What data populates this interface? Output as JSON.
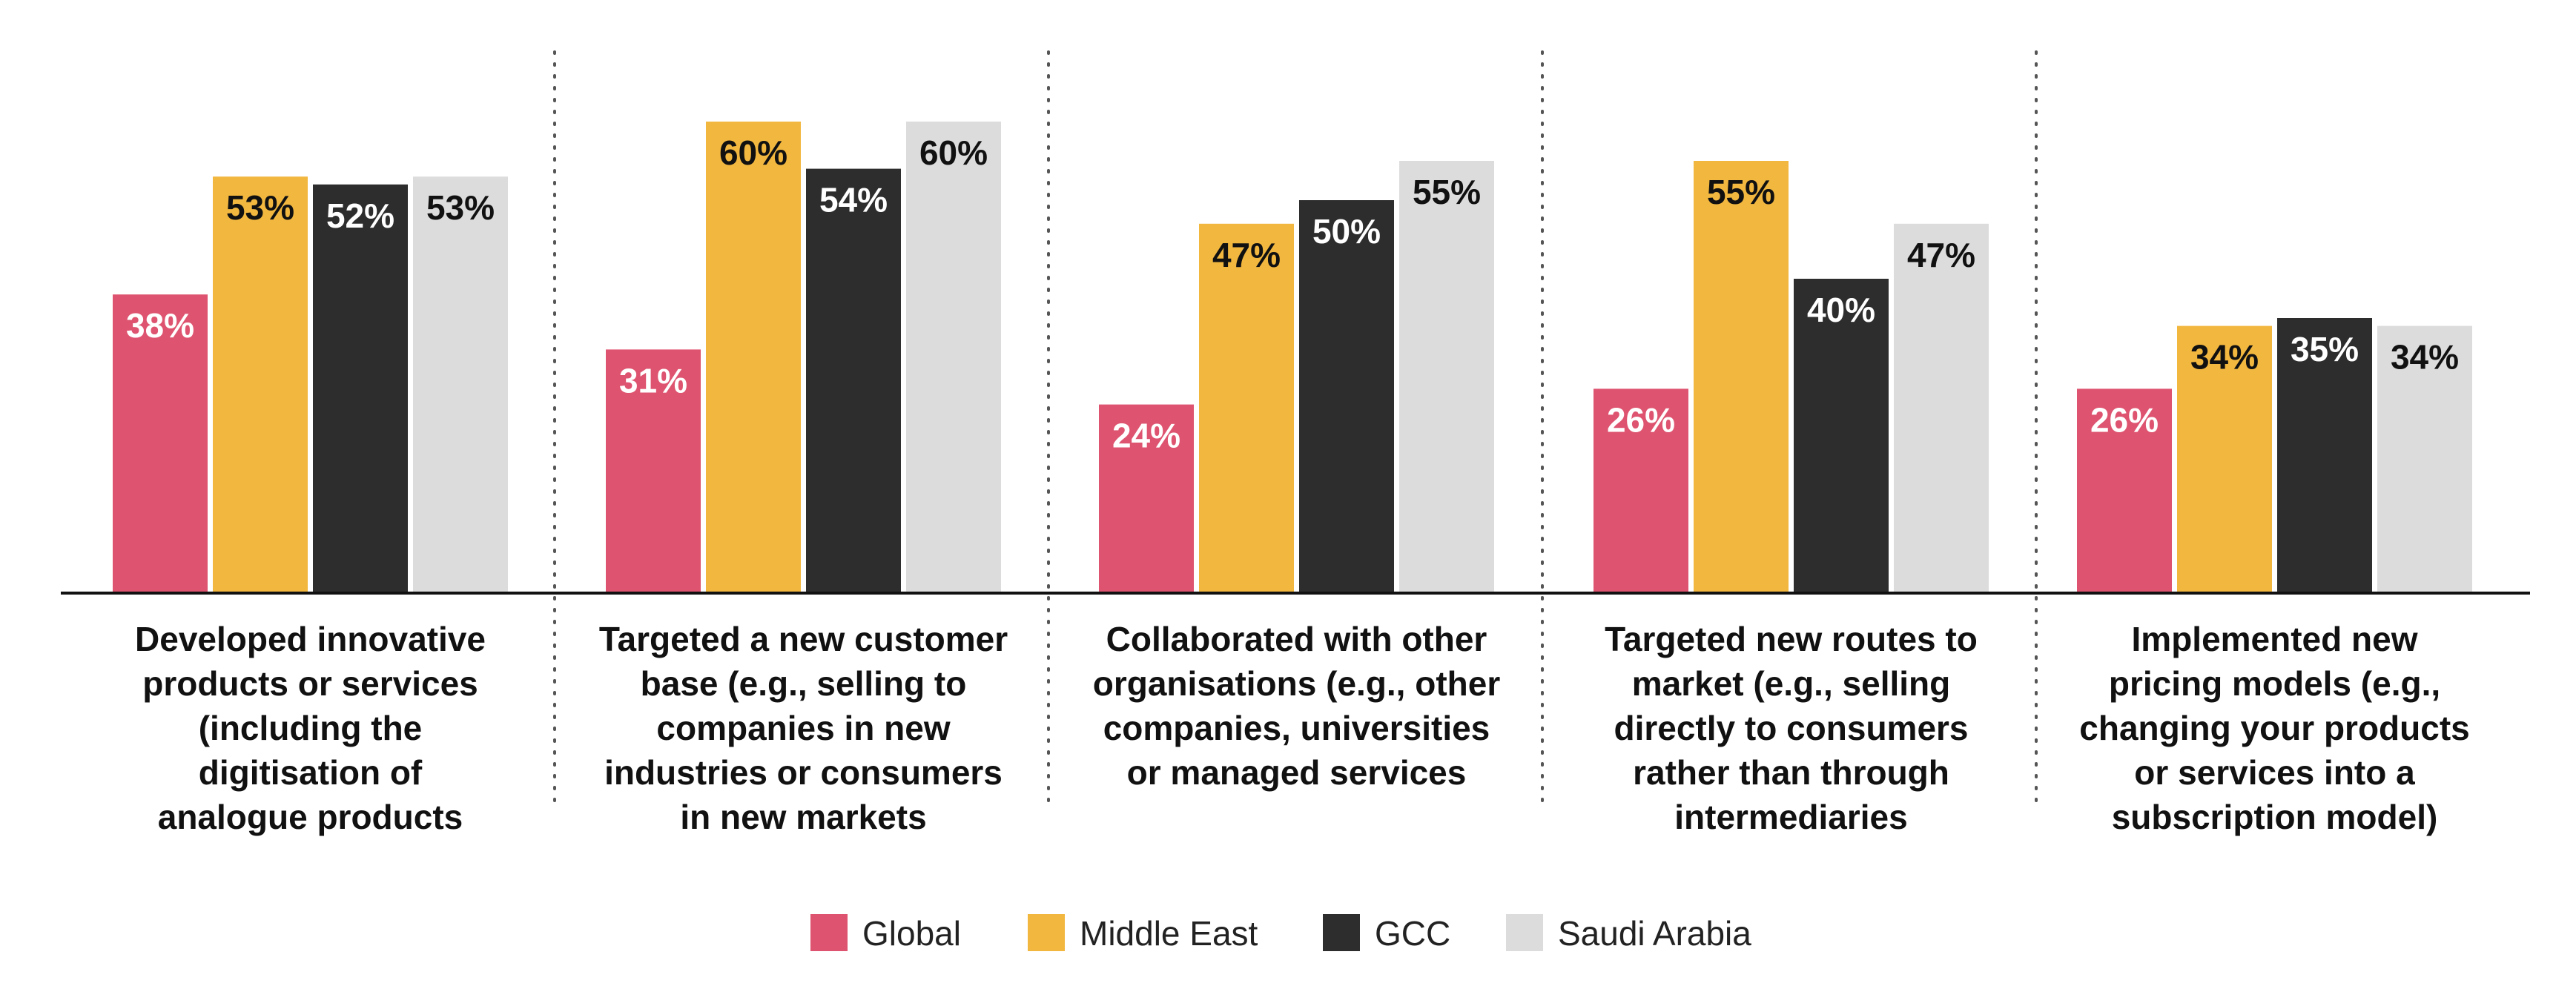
{
  "chart_data": {
    "type": "bar",
    "categories": [
      "Developed innovative products or services (including the digitisation of analogue products",
      "Targeted a new customer base (e.g., selling to companies in new industries or consumers in new markets",
      "Collaborated with other organisations (e.g., other companies, universities or managed services",
      "Targeted new routes to market (e.g., selling directly to consumers rather than through intermediaries",
      "Implemented new pricing models (e.g., changing your products or services into a subscription model)"
    ],
    "category_lines": [
      [
        "Developed innovative",
        "products or services",
        "(including the",
        "digitisation of",
        "analogue products"
      ],
      [
        "Targeted a new customer",
        "base (e.g., selling to",
        "companies in new",
        "industries or consumers",
        "in new markets"
      ],
      [
        "Collaborated with other",
        "organisations (e.g., other",
        "companies, universities",
        "or managed services"
      ],
      [
        "Targeted new routes to",
        "market (e.g., selling",
        "directly to consumers",
        "rather than through",
        "intermediaries"
      ],
      [
        "Implemented new",
        "pricing models (e.g.,",
        "changing your products",
        "or services into a",
        "subscription model)"
      ]
    ],
    "series": [
      {
        "name": "Global",
        "color": "#de5470",
        "label_color": "#ffffff",
        "values": [
          38,
          31,
          24,
          26,
          26
        ]
      },
      {
        "name": "Middle East",
        "color": "#f2b73f",
        "label_color": "#111111",
        "values": [
          53,
          60,
          47,
          55,
          34
        ]
      },
      {
        "name": "GCC",
        "color": "#2d2d2d",
        "label_color": "#ffffff",
        "values": [
          52,
          54,
          50,
          40,
          35
        ]
      },
      {
        "name": "Saudi Arabia",
        "color": "#dcdcdc",
        "label_color": "#111111",
        "values": [
          53,
          60,
          55,
          47,
          34
        ]
      }
    ],
    "value_suffix": "%",
    "ylim": [
      0,
      60
    ],
    "grid": false,
    "legend_position": "bottom",
    "title": "",
    "xlabel": "",
    "ylabel": ""
  },
  "legend": {
    "items": [
      {
        "name": "Global",
        "color": "#de5470"
      },
      {
        "name": "Middle East",
        "color": "#f2b73f"
      },
      {
        "name": "GCC",
        "color": "#2d2d2d"
      },
      {
        "name": "Saudi Arabia",
        "color": "#dcdcdc"
      }
    ]
  }
}
